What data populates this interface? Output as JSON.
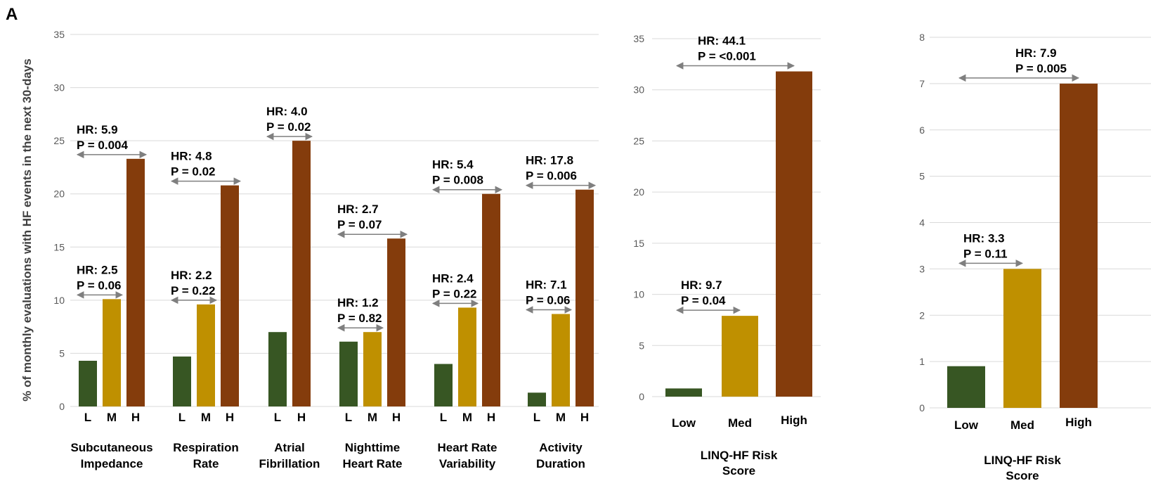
{
  "figure": {
    "panel_label": "A",
    "ylabel": "% of monthly evaluations with HF events in the next 30-days"
  },
  "colors": {
    "L": "#375623",
    "M": "#bf9000",
    "H": "#843c0c",
    "arrow": "#7f7f7f",
    "grid": "#d9d9d9"
  },
  "chart_data": [
    {
      "type": "bar",
      "id": "parameters",
      "ylim": [
        0,
        35
      ],
      "yticks": [
        "0",
        "5",
        "10",
        "15",
        "20",
        "25",
        "30",
        "35"
      ],
      "groups": [
        {
          "name": "Subcutaneous Impedance",
          "label_lines": [
            "Subcutaneous",
            "Impedance"
          ],
          "bars": [
            {
              "level": "L",
              "value": 4.3
            },
            {
              "level": "M",
              "value": 10.1
            },
            {
              "level": "H",
              "value": 23.3
            }
          ],
          "annotations": [
            {
              "from": "L",
              "to": "M",
              "hr": "HR: 2.5",
              "p": "P = 0.06"
            },
            {
              "from": "L",
              "to": "H",
              "hr": "HR: 5.9",
              "p": "P = 0.004"
            }
          ]
        },
        {
          "name": "Respiration Rate",
          "label_lines": [
            "Respiration",
            "Rate"
          ],
          "bars": [
            {
              "level": "L",
              "value": 4.7
            },
            {
              "level": "M",
              "value": 9.6
            },
            {
              "level": "H",
              "value": 20.8
            }
          ],
          "annotations": [
            {
              "from": "L",
              "to": "M",
              "hr": "HR: 2.2",
              "p": "P = 0.22"
            },
            {
              "from": "L",
              "to": "H",
              "hr": "HR: 4.8",
              "p": "P = 0.02"
            }
          ]
        },
        {
          "name": "Atrial Fibrillation",
          "label_lines": [
            "Atrial",
            "Fibrillation"
          ],
          "bars": [
            {
              "level": "L",
              "value": 7.0
            },
            {
              "level": "H",
              "value": 25.0
            }
          ],
          "annotations": [
            {
              "from": "L",
              "to": "H",
              "hr": "HR: 4.0",
              "p": "P = 0.02"
            }
          ]
        },
        {
          "name": "Nighttime Heart Rate",
          "label_lines": [
            "Nighttime",
            "Heart Rate"
          ],
          "bars": [
            {
              "level": "L",
              "value": 6.1
            },
            {
              "level": "M",
              "value": 7.0
            },
            {
              "level": "H",
              "value": 15.8
            }
          ],
          "annotations": [
            {
              "from": "L",
              "to": "M",
              "hr": "HR: 1.2",
              "p": "P = 0.82"
            },
            {
              "from": "L",
              "to": "H",
              "hr": "HR: 2.7",
              "p": "P = 0.07"
            }
          ]
        },
        {
          "name": "Heart Rate Variability",
          "label_lines": [
            "Heart Rate",
            "Variability"
          ],
          "bars": [
            {
              "level": "L",
              "value": 4.0
            },
            {
              "level": "M",
              "value": 9.3
            },
            {
              "level": "H",
              "value": 20.0
            }
          ],
          "annotations": [
            {
              "from": "L",
              "to": "M",
              "hr": "HR: 2.4",
              "p": "P = 0.22"
            },
            {
              "from": "L",
              "to": "H",
              "hr": "HR: 5.4",
              "p": "P = 0.008"
            }
          ]
        },
        {
          "name": "Activity Duration",
          "label_lines": [
            "Activity",
            "Duration"
          ],
          "bars": [
            {
              "level": "L",
              "value": 1.3
            },
            {
              "level": "M",
              "value": 8.7
            },
            {
              "level": "H",
              "value": 20.4
            }
          ],
          "annotations": [
            {
              "from": "L",
              "to": "M",
              "hr": "HR: 7.1",
              "p": "P = 0.06"
            },
            {
              "from": "L",
              "to": "H",
              "hr": "HR: 17.8",
              "p": "P = 0.006"
            }
          ]
        }
      ]
    },
    {
      "type": "bar",
      "id": "risk-score-1",
      "ylim": [
        0,
        35
      ],
      "yticks": [
        "0",
        "5",
        "10",
        "15",
        "20",
        "25",
        "30",
        "35"
      ],
      "xlabel_lines": [
        "LINQ-HF Risk",
        "Score"
      ],
      "bars": [
        {
          "level": "L",
          "label": "Low",
          "value": 0.8
        },
        {
          "level": "M",
          "label": "Med",
          "value": 7.9
        },
        {
          "level": "H",
          "label": "High",
          "value": 31.8
        }
      ],
      "annotations": [
        {
          "from": "L",
          "to": "M",
          "hr": "HR: 9.7",
          "p": "P = 0.04"
        },
        {
          "from": "L",
          "to": "H",
          "hr": "HR: 44.1",
          "p": "P = <0.001"
        }
      ]
    },
    {
      "type": "bar",
      "id": "risk-score-2",
      "ylim": [
        0,
        8
      ],
      "yticks": [
        "0",
        "1",
        "2",
        "3",
        "4",
        "5",
        "6",
        "7",
        "8"
      ],
      "xlabel_lines": [
        "LINQ-HF Risk",
        "Score"
      ],
      "bars": [
        {
          "level": "L",
          "label": "Low",
          "value": 0.9
        },
        {
          "level": "M",
          "label": "Med",
          "value": 3.0
        },
        {
          "level": "H",
          "label": "High",
          "value": 7.0
        }
      ],
      "annotations": [
        {
          "from": "L",
          "to": "M",
          "hr": "HR: 3.3",
          "p": "P = 0.11"
        },
        {
          "from": "L",
          "to": "H",
          "hr": "HR: 7.9",
          "p": "P = 0.005"
        }
      ]
    }
  ]
}
